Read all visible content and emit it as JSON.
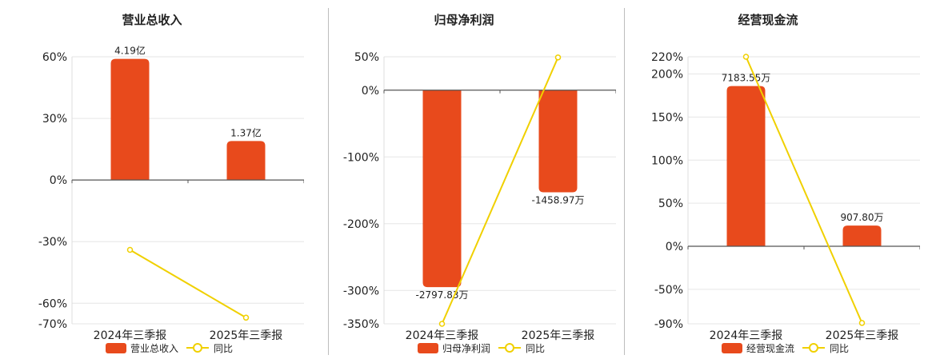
{
  "colors": {
    "bar": "#e84a1c",
    "line": "#f0d000",
    "grid": "#e6e6e6",
    "axis": "#555555",
    "text": "#222222"
  },
  "legend": {
    "line_label": "同比"
  },
  "chart_data": [
    {
      "type": "bar",
      "title": "营业总收入",
      "categories": [
        "2024年三季报",
        "2025年三季报"
      ],
      "series": [
        {
          "name": "营业总收入",
          "type": "bar",
          "values": [
            59,
            19
          ],
          "labels": [
            "4.19亿",
            "1.37亿"
          ]
        },
        {
          "name": "同比",
          "type": "line",
          "values": [
            -34,
            -67
          ]
        }
      ],
      "y_ticks": [
        60,
        30,
        0,
        -30,
        -60,
        -70
      ],
      "y_tick_labels": [
        "60%",
        "30%",
        "0%",
        "-30%",
        "-60%",
        "-70%"
      ],
      "ylim": [
        -70,
        60
      ],
      "grid": true,
      "legend_position": "bottom"
    },
    {
      "type": "bar",
      "title": "归母净利润",
      "categories": [
        "2024年三季报",
        "2025年三季报"
      ],
      "series": [
        {
          "name": "归母净利润",
          "type": "bar",
          "values": [
            -295,
            -153
          ],
          "labels": [
            "-2797.83万",
            "-1458.97万"
          ]
        },
        {
          "name": "同比",
          "type": "line",
          "values": [
            -350,
            49
          ]
        }
      ],
      "y_ticks": [
        50,
        0,
        -100,
        -200,
        -300,
        -350
      ],
      "y_tick_labels": [
        "50%",
        "0%",
        "-100%",
        "-200%",
        "-300%",
        "-350%"
      ],
      "ylim": [
        -350,
        50
      ],
      "grid": true,
      "legend_position": "bottom"
    },
    {
      "type": "bar",
      "title": "经营现金流",
      "categories": [
        "2024年三季报",
        "2025年三季报"
      ],
      "series": [
        {
          "name": "经营现金流",
          "type": "bar",
          "values": [
            186,
            24
          ],
          "labels": [
            "7183.55万",
            "907.80万"
          ]
        },
        {
          "name": "同比",
          "type": "line",
          "values": [
            220,
            -89
          ]
        }
      ],
      "y_ticks": [
        220,
        200,
        150,
        100,
        50,
        0,
        -50,
        -90
      ],
      "y_tick_labels": [
        "220%",
        "200%",
        "150%",
        "100%",
        "50%",
        "0%",
        "-50%",
        "-90%"
      ],
      "ylim": [
        -90,
        220
      ],
      "grid": true,
      "legend_position": "bottom"
    }
  ]
}
